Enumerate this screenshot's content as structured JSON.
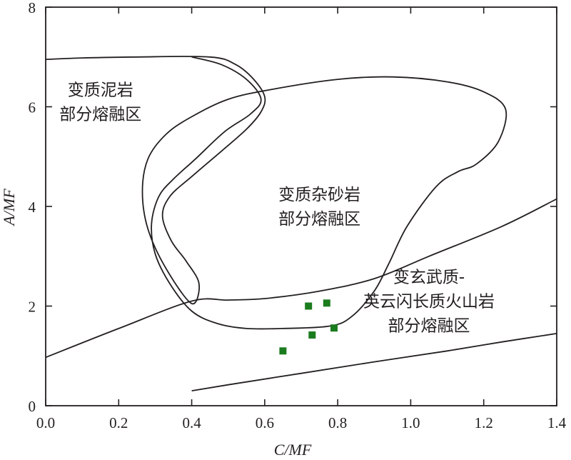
{
  "chart_data": {
    "type": "scatter",
    "title": "",
    "xlabel": "C/MF",
    "ylabel": "A/MF",
    "xlim": [
      0,
      1.4
    ],
    "ylim": [
      0,
      8
    ],
    "x_ticks": [
      "0.0",
      "0.2",
      "0.4",
      "0.6",
      "0.8",
      "1.0",
      "1.2",
      "1.4"
    ],
    "y_ticks": [
      "0",
      "2",
      "4",
      "6",
      "8"
    ],
    "grid": false,
    "legend": "none",
    "marker_color": "#1b7c1e",
    "line_color": "#231f20",
    "series": [
      {
        "name": "samples",
        "points": [
          {
            "x": 0.65,
            "y": 1.1
          },
          {
            "x": 0.72,
            "y": 2.0
          },
          {
            "x": 0.73,
            "y": 1.42
          },
          {
            "x": 0.77,
            "y": 2.06
          },
          {
            "x": 0.79,
            "y": 1.56
          }
        ]
      }
    ],
    "regions": [
      {
        "name": "metapelite",
        "label_lines": [
          "变质泥岩",
          "部分熔融区"
        ],
        "label_anchor": {
          "x": 0.15,
          "y": 6.1
        },
        "boundary": [
          [
            0.0,
            6.95
          ],
          [
            0.1,
            6.98
          ],
          [
            0.25,
            7.0
          ],
          [
            0.45,
            7.0
          ],
          [
            0.52,
            6.85
          ],
          [
            0.57,
            6.55
          ],
          [
            0.6,
            6.2
          ],
          [
            0.59,
            5.9
          ],
          [
            0.55,
            5.55
          ],
          [
            0.48,
            5.1
          ],
          [
            0.4,
            4.6
          ],
          [
            0.34,
            4.2
          ],
          [
            0.32,
            3.8
          ],
          [
            0.345,
            3.3
          ],
          [
            0.385,
            2.9
          ],
          [
            0.42,
            2.45
          ],
          [
            0.4,
            2.05
          ],
          [
            0.33,
            2.75
          ],
          [
            0.28,
            3.55
          ],
          [
            0.265,
            4.3
          ],
          [
            0.28,
            4.95
          ],
          [
            0.33,
            5.45
          ],
          [
            0.4,
            5.8
          ],
          [
            0.5,
            6.15
          ],
          [
            0.62,
            6.35
          ],
          [
            0.8,
            6.55
          ],
          [
            0.95,
            6.6
          ],
          [
            1.1,
            6.5
          ],
          [
            1.2,
            6.3
          ],
          [
            1.26,
            5.95
          ],
          [
            1.24,
            5.3
          ],
          [
            1.18,
            4.85
          ],
          [
            1.13,
            4.7
          ],
          [
            1.07,
            4.4
          ],
          [
            0.99,
            3.6
          ],
          [
            0.94,
            2.85
          ],
          [
            0.9,
            2.3
          ],
          [
            0.84,
            1.8
          ],
          [
            0.78,
            1.6
          ],
          [
            0.65,
            1.55
          ],
          [
            0.55,
            1.55
          ],
          [
            0.47,
            1.65
          ],
          [
            0.4,
            1.9
          ],
          [
            0.34,
            2.45
          ],
          [
            0.3,
            3.05
          ],
          [
            0.29,
            3.65
          ],
          [
            0.31,
            4.2
          ],
          [
            0.35,
            4.55
          ],
          [
            0.41,
            4.95
          ],
          [
            0.49,
            5.5
          ],
          [
            0.56,
            5.85
          ],
          [
            0.59,
            6.15
          ],
          [
            0.55,
            6.55
          ],
          [
            0.48,
            6.85
          ],
          [
            0.4,
            7.0
          ]
        ]
      },
      {
        "name": "greywacke",
        "label_lines": [
          "变质杂砂岩",
          "部分熔融区"
        ],
        "label_anchor": {
          "x": 0.75,
          "y": 4.0
        }
      },
      {
        "name": "metabasalt",
        "label_lines": [
          "变玄武质-",
          "英云闪长质火山岩",
          "部分熔融区"
        ],
        "label_anchor": {
          "x": 1.05,
          "y": 2.1
        },
        "boundary": [
          [
            0.0,
            0.97
          ],
          [
            0.2,
            1.55
          ],
          [
            0.4,
            2.1
          ],
          [
            0.5,
            2.12
          ],
          [
            0.6,
            2.15
          ],
          [
            0.75,
            2.3
          ],
          [
            0.9,
            2.55
          ],
          [
            1.05,
            3.0
          ],
          [
            1.25,
            3.6
          ],
          [
            1.4,
            4.15
          ]
        ]
      },
      {
        "name": "lower boundary",
        "label_lines": [],
        "boundary": [
          [
            0.4,
            0.3
          ],
          [
            0.5,
            0.42
          ],
          [
            0.7,
            0.65
          ],
          [
            0.9,
            0.88
          ],
          [
            1.1,
            1.1
          ],
          [
            1.25,
            1.28
          ],
          [
            1.4,
            1.45
          ]
        ]
      }
    ]
  }
}
